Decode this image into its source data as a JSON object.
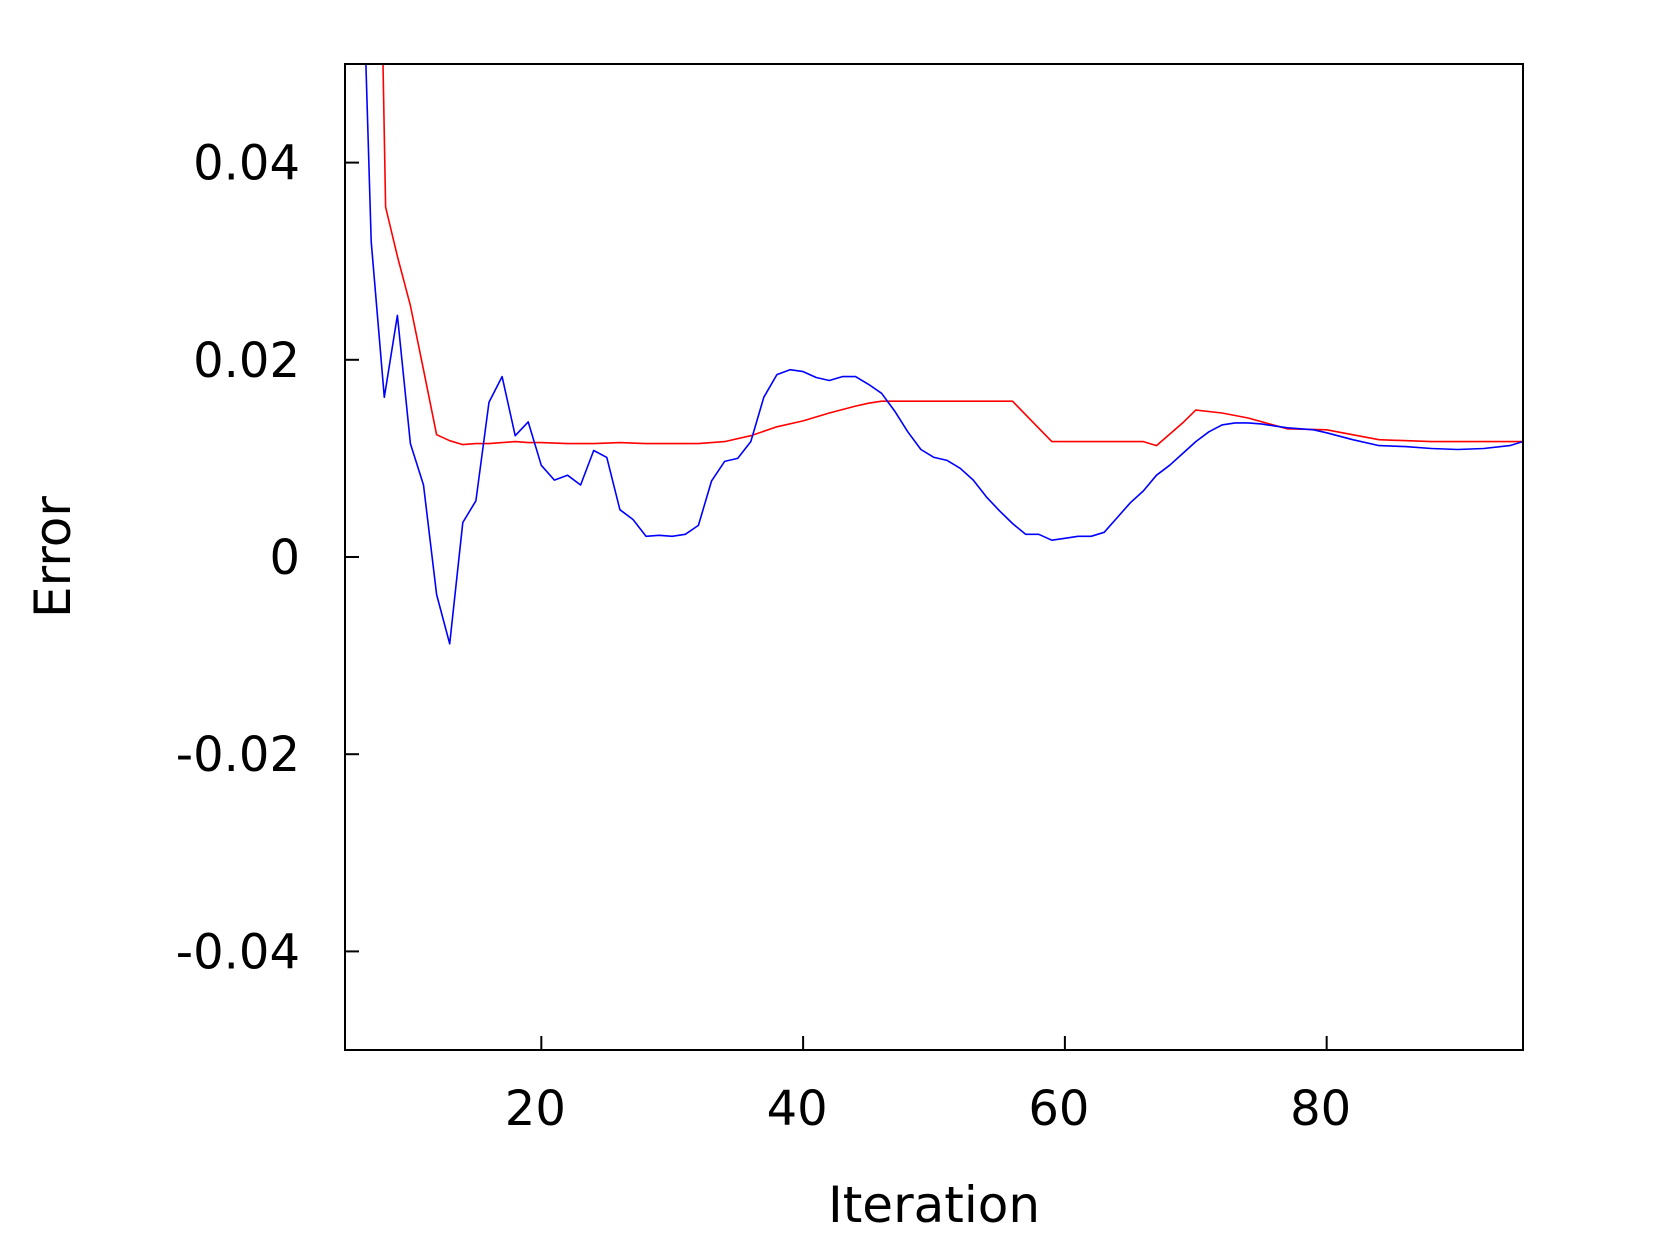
{
  "chart_data": {
    "type": "line",
    "title": "",
    "xlabel": "Iteration",
    "ylabel": "Error",
    "xlim": [
      5,
      95
    ],
    "ylim": [
      -0.05,
      0.05
    ],
    "grid": false,
    "xticks": [
      20,
      40,
      60,
      80
    ],
    "xtick_labels": [
      "20",
      "40",
      "60",
      "80"
    ],
    "yticks": [
      0.04,
      0.02,
      0,
      -0.02,
      -0.04
    ],
    "ytick_labels": [
      "0.04",
      "0.02",
      "0",
      "-0.02",
      "-0.04"
    ],
    "series": [
      {
        "color": "#ff0000",
        "x": [
          7.9,
          8.1,
          9,
          10,
          11,
          12,
          13,
          14,
          15,
          16,
          17,
          18,
          19,
          20,
          22,
          24,
          26,
          28,
          30,
          32,
          34,
          36,
          38,
          40,
          42,
          44,
          45,
          46,
          48,
          50,
          52,
          54,
          56,
          59,
          62,
          64,
          66,
          67,
          69,
          70,
          72,
          74,
          77,
          80,
          84,
          88,
          92,
          95
        ],
        "y": [
          0.05,
          0.0355,
          0.0305,
          0.0255,
          0.019,
          0.0124,
          0.0118,
          0.0114,
          0.0115,
          0.0115,
          0.0116,
          0.0117,
          0.0116,
          0.0116,
          0.0115,
          0.0115,
          0.0116,
          0.0115,
          0.0115,
          0.0115,
          0.0117,
          0.0123,
          0.0132,
          0.0138,
          0.0146,
          0.0153,
          0.0156,
          0.0158,
          0.0158,
          0.0158,
          0.0158,
          0.0158,
          0.0158,
          0.0117,
          0.0117,
          0.0117,
          0.0117,
          0.0113,
          0.0136,
          0.0149,
          0.0146,
          0.0141,
          0.013,
          0.0129,
          0.0119,
          0.0117,
          0.0117,
          0.0117
        ]
      },
      {
        "color": "#0000ff",
        "x": [
          6.6,
          7,
          8,
          9,
          10,
          11,
          12,
          13,
          14,
          15,
          16,
          17,
          18,
          19,
          20,
          21,
          22,
          23,
          24,
          25,
          26,
          27,
          28,
          29,
          30,
          31,
          32,
          33,
          34,
          35,
          36,
          37,
          38,
          39,
          40,
          41,
          42,
          43,
          44,
          45,
          46,
          47,
          48,
          49,
          50,
          51,
          52,
          53,
          54,
          55,
          56,
          57,
          58,
          59,
          60,
          61,
          62,
          63,
          64,
          65,
          66,
          67,
          68,
          69,
          70,
          71,
          72,
          73,
          74,
          75,
          76,
          77,
          78,
          79,
          80,
          82,
          84,
          86,
          88,
          90,
          92,
          94,
          95
        ],
        "y": [
          0.05,
          0.032,
          0.0162,
          0.0245,
          0.0115,
          0.0073,
          -0.0038,
          -0.0088,
          0.0035,
          0.0057,
          0.0157,
          0.0183,
          0.0123,
          0.0137,
          0.0093,
          0.0078,
          0.0083,
          0.0073,
          0.0108,
          0.0101,
          0.0048,
          0.0038,
          0.0021,
          0.0022,
          0.0021,
          0.0023,
          0.0032,
          0.0077,
          0.0097,
          0.01,
          0.0117,
          0.0162,
          0.0185,
          0.019,
          0.0188,
          0.0182,
          0.0179,
          0.0183,
          0.0183,
          0.0175,
          0.0166,
          0.0148,
          0.0127,
          0.0109,
          0.0101,
          0.0098,
          0.009,
          0.0078,
          0.0061,
          0.0047,
          0.0034,
          0.0023,
          0.0023,
          0.0017,
          0.0019,
          0.0021,
          0.0021,
          0.0025,
          0.004,
          0.0055,
          0.0067,
          0.0083,
          0.0093,
          0.0105,
          0.0117,
          0.0127,
          0.0134,
          0.0136,
          0.0136,
          0.0135,
          0.0133,
          0.0131,
          0.013,
          0.0129,
          0.0126,
          0.0119,
          0.0113,
          0.0112,
          0.011,
          0.0109,
          0.011,
          0.0113,
          0.0117
        ]
      }
    ]
  }
}
